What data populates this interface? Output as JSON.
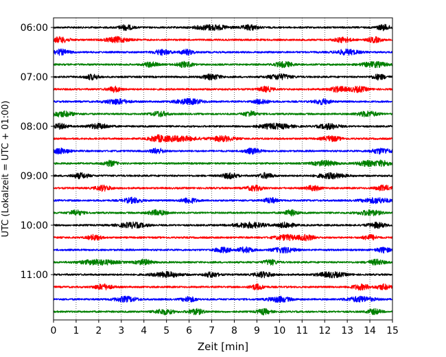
{
  "chart_data": {
    "type": "line",
    "title": "",
    "xlabel": "Zeit  [min]",
    "ylabel": "UTC (Lokalzeit = UTC + 01:00)",
    "xlim": [
      0,
      15
    ],
    "x_ticks": [
      "0",
      "1",
      "2",
      "3",
      "4",
      "5",
      "6",
      "7",
      "8",
      "9",
      "10",
      "11",
      "12",
      "13",
      "14",
      "15"
    ],
    "y_ticks": [
      "06:00",
      "07:00",
      "08:00",
      "09:00",
      "10:00",
      "11:00"
    ],
    "grid": "vertical dotted",
    "trace_interval_min": 15,
    "trace_colors": [
      "#000000",
      "#ff0000",
      "#0000ff",
      "#008000"
    ],
    "series": [
      {
        "start": "06:00",
        "color": "#000000"
      },
      {
        "start": "06:15",
        "color": "#ff0000"
      },
      {
        "start": "06:30",
        "color": "#0000ff"
      },
      {
        "start": "06:45",
        "color": "#008000"
      },
      {
        "start": "07:00",
        "color": "#000000"
      },
      {
        "start": "07:15",
        "color": "#ff0000"
      },
      {
        "start": "07:30",
        "color": "#0000ff"
      },
      {
        "start": "07:45",
        "color": "#008000"
      },
      {
        "start": "08:00",
        "color": "#000000"
      },
      {
        "start": "08:15",
        "color": "#ff0000"
      },
      {
        "start": "08:30",
        "color": "#0000ff"
      },
      {
        "start": "08:45",
        "color": "#008000"
      },
      {
        "start": "09:00",
        "color": "#000000"
      },
      {
        "start": "09:15",
        "color": "#ff0000"
      },
      {
        "start": "09:30",
        "color": "#0000ff"
      },
      {
        "start": "09:45",
        "color": "#008000"
      },
      {
        "start": "10:00",
        "color": "#000000"
      },
      {
        "start": "10:15",
        "color": "#ff0000"
      },
      {
        "start": "10:30",
        "color": "#0000ff"
      },
      {
        "start": "10:45",
        "color": "#008000"
      },
      {
        "start": "11:00",
        "color": "#000000"
      },
      {
        "start": "11:15",
        "color": "#ff0000"
      },
      {
        "start": "11:30",
        "color": "#0000ff"
      },
      {
        "start": "11:45",
        "color": "#008000"
      }
    ],
    "bursts_min": [
      [
        [
          7.0,
          0.7
        ],
        [
          8.7,
          0.35
        ],
        [
          3.2,
          0.3
        ],
        [
          14.6,
          0.3
        ]
      ],
      [
        [
          0.3,
          0.4
        ],
        [
          2.8,
          0.5
        ],
        [
          12.8,
          0.35
        ],
        [
          14.2,
          0.3
        ]
      ],
      [
        [
          0.3,
          0.4
        ],
        [
          4.8,
          0.35
        ],
        [
          13.0,
          0.5
        ],
        [
          5.9,
          0.3
        ]
      ],
      [
        [
          5.8,
          0.35
        ],
        [
          10.2,
          0.4
        ],
        [
          14.2,
          0.55
        ],
        [
          4.3,
          0.3
        ]
      ],
      [
        [
          10.0,
          0.5
        ],
        [
          7.0,
          0.4
        ],
        [
          1.7,
          0.3
        ],
        [
          14.4,
          0.3
        ]
      ],
      [
        [
          2.7,
          0.3
        ],
        [
          12.6,
          0.4
        ],
        [
          13.5,
          0.4
        ],
        [
          9.4,
          0.3
        ]
      ],
      [
        [
          2.8,
          0.5
        ],
        [
          6.0,
          0.6
        ],
        [
          11.9,
          0.35
        ],
        [
          9.2,
          0.3
        ]
      ],
      [
        [
          0.4,
          0.5
        ],
        [
          4.7,
          0.35
        ],
        [
          13.9,
          0.45
        ],
        [
          8.7,
          0.3
        ]
      ],
      [
        [
          2.0,
          0.45
        ],
        [
          9.8,
          0.7
        ],
        [
          12.2,
          0.45
        ],
        [
          0.3,
          0.3
        ]
      ],
      [
        [
          5.5,
          0.8
        ],
        [
          7.5,
          0.5
        ],
        [
          12.3,
          0.4
        ],
        [
          4.6,
          0.35
        ]
      ],
      [
        [
          0.3,
          0.4
        ],
        [
          8.8,
          0.35
        ],
        [
          14.5,
          0.45
        ],
        [
          4.6,
          0.3
        ]
      ],
      [
        [
          2.5,
          0.3
        ],
        [
          12.0,
          0.5
        ],
        [
          13.9,
          0.45
        ],
        [
          14.6,
          0.3
        ]
      ],
      [
        [
          1.2,
          0.35
        ],
        [
          7.8,
          0.35
        ],
        [
          12.3,
          0.6
        ],
        [
          9.4,
          0.3
        ]
      ],
      [
        [
          2.2,
          0.35
        ],
        [
          8.9,
          0.35
        ],
        [
          14.6,
          0.35
        ],
        [
          11.5,
          0.3
        ]
      ],
      [
        [
          3.5,
          0.4
        ],
        [
          6.0,
          0.35
        ],
        [
          14.3,
          0.6
        ],
        [
          9.6,
          0.3
        ]
      ],
      [
        [
          1.0,
          0.3
        ],
        [
          4.6,
          0.4
        ],
        [
          14.0,
          0.5
        ],
        [
          10.5,
          0.3
        ]
      ],
      [
        [
          3.5,
          0.6
        ],
        [
          8.7,
          0.7
        ],
        [
          10.3,
          0.35
        ],
        [
          14.3,
          0.4
        ]
      ],
      [
        [
          10.3,
          0.5
        ],
        [
          11.2,
          0.35
        ],
        [
          14.0,
          0.3
        ],
        [
          1.8,
          0.3
        ]
      ],
      [
        [
          7.5,
          0.35
        ],
        [
          8.5,
          0.35
        ],
        [
          10.2,
          0.5
        ],
        [
          14.6,
          0.3
        ]
      ],
      [
        [
          2.0,
          0.8
        ],
        [
          4.0,
          0.35
        ],
        [
          14.3,
          0.35
        ],
        [
          9.6,
          0.3
        ]
      ],
      [
        [
          5.0,
          0.6
        ],
        [
          9.3,
          0.4
        ],
        [
          12.3,
          0.6
        ],
        [
          7.0,
          0.3
        ]
      ],
      [
        [
          2.2,
          0.4
        ],
        [
          9.0,
          0.3
        ],
        [
          13.6,
          0.4
        ],
        [
          14.6,
          0.3
        ]
      ],
      [
        [
          3.2,
          0.5
        ],
        [
          10.0,
          0.5
        ],
        [
          13.6,
          0.6
        ],
        [
          6.0,
          0.3
        ]
      ],
      [
        [
          4.9,
          0.4
        ],
        [
          6.3,
          0.35
        ],
        [
          9.3,
          0.3
        ],
        [
          14.2,
          0.3
        ]
      ]
    ]
  }
}
